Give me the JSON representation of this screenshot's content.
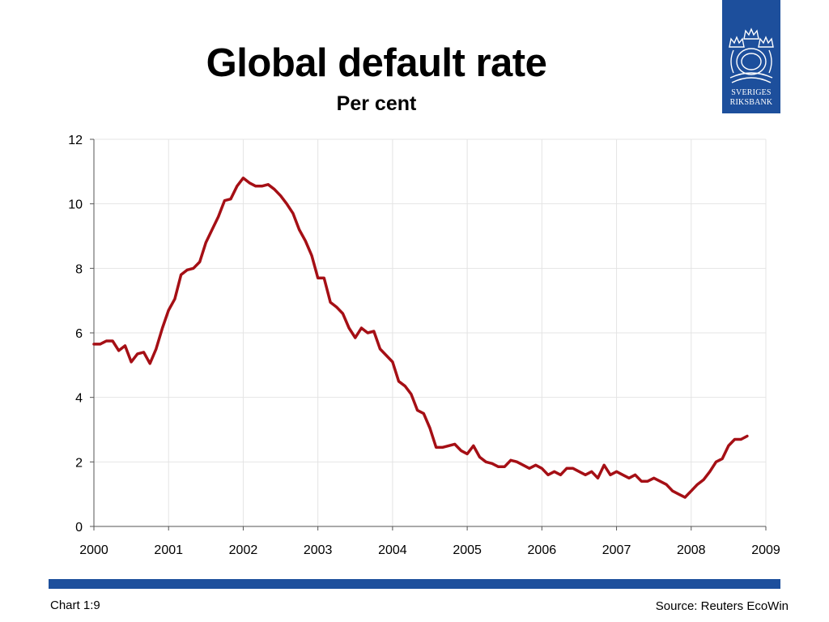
{
  "slide": {
    "title": "Global default rate",
    "subtitle": "Per cent",
    "chart_number": "Chart 1:9",
    "source": "Source: Reuters EcoWin"
  },
  "logo": {
    "line1": "SVERIGES",
    "line2": "RIKSBANK"
  },
  "colors": {
    "series": "#a50f15",
    "brand_blue": "#1d4f9c",
    "grid": "#e4e4e4"
  },
  "chart_data": {
    "type": "line",
    "title": "Global default rate",
    "subtitle": "Per cent",
    "xlabel": "",
    "ylabel": "",
    "xlim": [
      2000,
      2009
    ],
    "ylim": [
      0,
      12
    ],
    "x_ticks": [
      "2000",
      "2001",
      "2002",
      "2003",
      "2004",
      "2005",
      "2006",
      "2007",
      "2008",
      "2009"
    ],
    "y_ticks": [
      "0",
      "2",
      "4",
      "6",
      "8",
      "10",
      "12"
    ],
    "grid": true,
    "legend": "none",
    "series": [
      {
        "x": [
          2000.0,
          2000.083,
          2000.167,
          2000.25,
          2000.333,
          2000.417,
          2000.5,
          2000.583,
          2000.667,
          2000.75,
          2000.833,
          2000.917,
          2001.0,
          2001.083,
          2001.167,
          2001.25,
          2001.333,
          2001.417,
          2001.5,
          2001.583,
          2001.667,
          2001.75,
          2001.833,
          2001.917,
          2002.0,
          2002.083,
          2002.167,
          2002.25,
          2002.333,
          2002.417,
          2002.5,
          2002.583,
          2002.667,
          2002.75,
          2002.833,
          2002.917,
          2003.0,
          2003.083,
          2003.167,
          2003.25,
          2003.333,
          2003.417,
          2003.5,
          2003.583,
          2003.667,
          2003.75,
          2003.833,
          2003.917,
          2004.0,
          2004.083,
          2004.167,
          2004.25,
          2004.333,
          2004.417,
          2004.5,
          2004.583,
          2004.667,
          2004.75,
          2004.833,
          2004.917,
          2005.0,
          2005.083,
          2005.167,
          2005.25,
          2005.333,
          2005.417,
          2005.5,
          2005.583,
          2005.667,
          2005.75,
          2005.833,
          2005.917,
          2006.0,
          2006.083,
          2006.167,
          2006.25,
          2006.333,
          2006.417,
          2006.5,
          2006.583,
          2006.667,
          2006.75,
          2006.833,
          2006.917,
          2007.0,
          2007.083,
          2007.167,
          2007.25,
          2007.333,
          2007.417,
          2007.5,
          2007.583,
          2007.667,
          2007.75,
          2007.833,
          2007.917,
          2008.0,
          2008.083,
          2008.167,
          2008.25,
          2008.333,
          2008.417,
          2008.5,
          2008.583,
          2008.667,
          2008.75
        ],
        "values": [
          5.65,
          5.65,
          5.75,
          5.75,
          5.45,
          5.6,
          5.1,
          5.35,
          5.4,
          5.05,
          5.5,
          6.15,
          6.7,
          7.05,
          7.8,
          7.95,
          8.0,
          8.2,
          8.8,
          9.2,
          9.6,
          10.1,
          10.15,
          10.55,
          10.8,
          10.65,
          10.55,
          10.55,
          10.6,
          10.45,
          10.25,
          10.0,
          9.7,
          9.2,
          8.85,
          8.4,
          7.7,
          7.7,
          6.95,
          6.8,
          6.6,
          6.15,
          5.85,
          6.15,
          6.0,
          6.05,
          5.5,
          5.3,
          5.1,
          4.5,
          4.35,
          4.1,
          3.6,
          3.5,
          3.05,
          2.45,
          2.45,
          2.5,
          2.55,
          2.35,
          2.25,
          2.5,
          2.15,
          2.0,
          1.95,
          1.85,
          1.85,
          2.05,
          2.0,
          1.9,
          1.8,
          1.9,
          1.8,
          1.6,
          1.7,
          1.6,
          1.8,
          1.8,
          1.7,
          1.6,
          1.7,
          1.5,
          1.9,
          1.6,
          1.7,
          1.6,
          1.5,
          1.6,
          1.4,
          1.4,
          1.5,
          1.4,
          1.3,
          1.1,
          1.0,
          0.9,
          1.1,
          1.3,
          1.45,
          1.7,
          2.0,
          2.1,
          2.5,
          2.7,
          2.7,
          2.8
        ]
      }
    ]
  }
}
